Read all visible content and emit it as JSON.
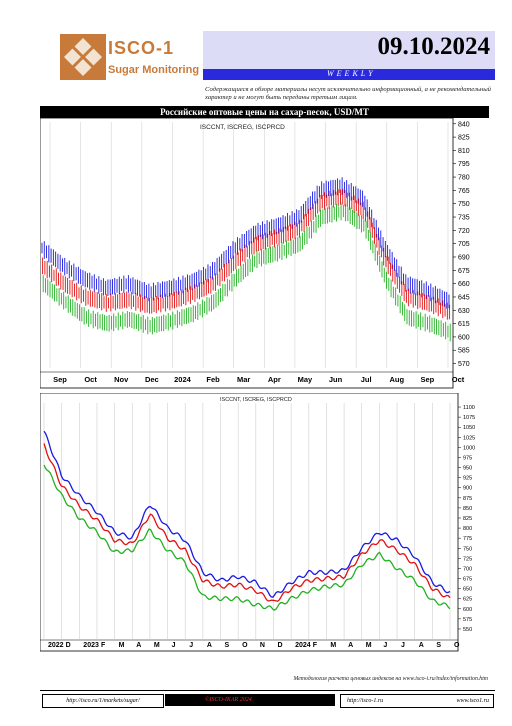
{
  "header": {
    "logo_name": "ISCO-1",
    "logo_sub": "Sugar Monitoring",
    "date": "09.10.2024",
    "frequency": "WEEKLY",
    "disclaimer": "Содержащиеся в обзоре материалы несут исключительно информационный, а не рекомендательный характер и не могут быть переданы третьим лицам."
  },
  "title": "Российские оптовые цены на сахар-песок, USD/MT",
  "colors": {
    "blue": "#1a1adf",
    "red": "#e01010",
    "green": "#22b022",
    "brand": "#c77a3a"
  },
  "chart_data": [
    {
      "type": "bar",
      "subtype": "ohlc",
      "legend": "ISCCNT, ISCREG, ISCPRCD",
      "x_ticks": [
        "Sep",
        "Oct",
        "Nov",
        "Dec",
        "2024",
        "Feb",
        "Mar",
        "Apr",
        "May",
        "Jun",
        "Jul",
        "Aug",
        "Sep",
        "Oct"
      ],
      "y_ticks": [
        840,
        825,
        810,
        795,
        780,
        765,
        750,
        735,
        720,
        705,
        690,
        675,
        660,
        645,
        630,
        615,
        600,
        585,
        570
      ],
      "ylim": [
        565,
        842
      ],
      "grid": true,
      "series": [
        {
          "name": "ISCCNT",
          "values": [
            700,
            680,
            665,
            655,
            660,
            650,
            655,
            662,
            675,
            700,
            718,
            725,
            735,
            765,
            770,
            755,
            700,
            660,
            652,
            640
          ]
        },
        {
          "name": "ISCREG",
          "values": [
            680,
            660,
            645,
            638,
            642,
            635,
            640,
            648,
            660,
            685,
            705,
            712,
            722,
            752,
            758,
            742,
            686,
            645,
            638,
            628
          ]
        },
        {
          "name": "ISCPRCD",
          "values": [
            660,
            640,
            622,
            615,
            620,
            612,
            618,
            626,
            640,
            666,
            688,
            695,
            705,
            735,
            742,
            725,
            665,
            622,
            615,
            605
          ]
        }
      ]
    },
    {
      "type": "line",
      "legend": "ISCCNT, ISCREG, ISCPRCD",
      "x_ticks": [
        "2022",
        "D",
        "2023",
        "F",
        "M",
        "A",
        "M",
        "J",
        "J",
        "A",
        "S",
        "O",
        "N",
        "D",
        "2024",
        "F",
        "M",
        "A",
        "M",
        "J",
        "J",
        "A",
        "S",
        "O"
      ],
      "y_ticks": [
        1100,
        1075,
        1050,
        1025,
        1000,
        975,
        950,
        925,
        900,
        875,
        850,
        825,
        800,
        775,
        750,
        725,
        700,
        675,
        650,
        625,
        600,
        575,
        550
      ],
      "ylim": [
        535,
        1110
      ],
      "grid": true,
      "x": [
        "2022-11",
        "2022-12",
        "2023-01",
        "2023-02",
        "2023-03",
        "2023-04",
        "2023-05",
        "2023-06",
        "2023-07",
        "2023-08",
        "2023-09",
        "2023-10",
        "2023-11",
        "2023-12",
        "2024-01",
        "2024-02",
        "2024-03",
        "2024-04",
        "2024-05",
        "2024-06",
        "2024-07",
        "2024-08",
        "2024-09",
        "2024-10"
      ],
      "series": [
        {
          "name": "ISCCNT",
          "values": [
            1040,
            930,
            880,
            840,
            790,
            775,
            860,
            800,
            770,
            690,
            670,
            680,
            665,
            630,
            665,
            690,
            690,
            695,
            750,
            790,
            770,
            730,
            665,
            640
          ]
        },
        {
          "name": "ISCREG",
          "values": [
            1005,
            905,
            855,
            820,
            770,
            760,
            835,
            775,
            745,
            670,
            655,
            660,
            645,
            615,
            650,
            670,
            675,
            680,
            735,
            770,
            745,
            710,
            650,
            625
          ]
        },
        {
          "name": "ISCPRCD",
          "values": [
            960,
            880,
            825,
            790,
            740,
            745,
            795,
            745,
            715,
            630,
            625,
            625,
            610,
            600,
            625,
            645,
            655,
            660,
            710,
            735,
            700,
            670,
            620,
            605
          ]
        }
      ]
    }
  ],
  "footer": {
    "note": "Методология расчета ценовых индексов на www.isco-i.ru/index/information.htm",
    "link1": "http://isco.ru/1/markets/sugar/",
    "copyright": "©ISCO-IKAR 2024",
    "link2": "http://isco-1.ru",
    "link3": "www.isco1.ru"
  }
}
